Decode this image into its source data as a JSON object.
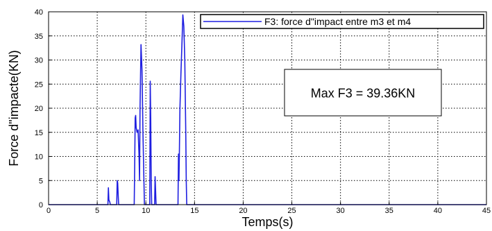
{
  "chart_data": {
    "type": "line",
    "title": "",
    "xlabel": "Temps(s)",
    "ylabel": "Force d\"impacte(KN)",
    "xlim": [
      0,
      45
    ],
    "ylim": [
      0,
      40
    ],
    "xticks": [
      0,
      5,
      10,
      15,
      20,
      25,
      30,
      35,
      40,
      45
    ],
    "yticks": [
      0,
      5,
      10,
      15,
      20,
      25,
      30,
      35,
      40
    ],
    "grid": true,
    "legend_position": "top-right",
    "annotation": "Max F3 = 39.36KN",
    "series": [
      {
        "name": "F3: force d\"impact entre m3 et m4",
        "color": "#1f1fe0",
        "x": [
          0,
          6.1,
          6.15,
          6.2,
          6.3,
          6.35,
          7.0,
          7.05,
          7.1,
          7.15,
          7.2,
          8.8,
          8.85,
          8.9,
          8.95,
          9.0,
          9.1,
          9.2,
          9.3,
          9.35,
          9.4,
          9.5,
          9.6,
          9.7,
          9.8,
          9.85,
          9.9,
          10.4,
          10.45,
          10.5,
          10.55,
          10.6,
          10.9,
          10.95,
          11.0,
          11.05,
          13.3,
          13.35,
          13.4,
          13.45,
          13.5,
          13.6,
          13.7,
          13.8,
          13.9,
          14.0,
          14.1,
          14.15,
          14.2,
          45
        ],
        "y": [
          0,
          0,
          3.5,
          1.0,
          0.5,
          0,
          0,
          5.0,
          4.5,
          2.0,
          0,
          0,
          8.0,
          18.0,
          18.5,
          16.0,
          15.0,
          15.5,
          10.0,
          5.0,
          20.0,
          33.2,
          28.0,
          15.0,
          5.0,
          0,
          0,
          0,
          25.6,
          18.0,
          5.0,
          0,
          0,
          5.8,
          3.0,
          0,
          0,
          10.5,
          5.0,
          12.0,
          20.0,
          27.0,
          33.0,
          39.36,
          37.0,
          30.0,
          15.0,
          5.0,
          0,
          0
        ]
      }
    ]
  }
}
